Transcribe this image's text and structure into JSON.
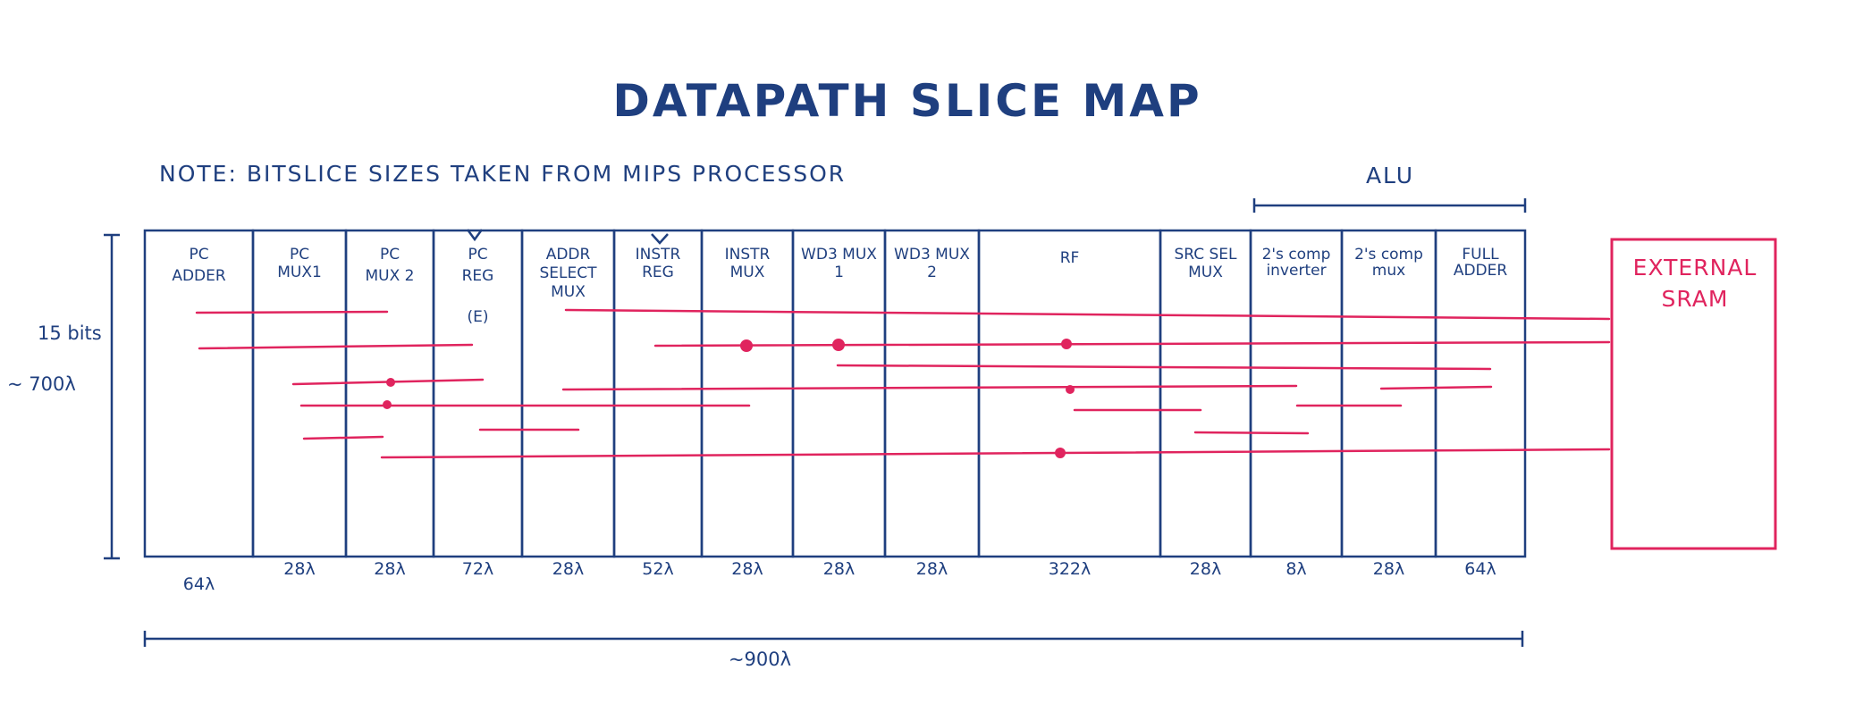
{
  "title": "DATAPATH SLICE MAP",
  "note": "NOTE: BITSLICE SIZES TAKEN FROM MIPS PROCESSOR",
  "alu_label": "ALU",
  "height_labels": {
    "bits": "15 bits",
    "lambda": "~ 700λ"
  },
  "total_width_label": "~900λ",
  "external_sram": [
    "EXTERNAL",
    "SRAM"
  ],
  "slices": [
    {
      "lines": [
        "PC",
        "ADDER"
      ],
      "width": "64λ"
    },
    {
      "lines": [
        "PC",
        "MUX1"
      ],
      "width": "28λ"
    },
    {
      "lines": [
        "PC",
        "MUX 2"
      ],
      "width": "28λ"
    },
    {
      "lines": [
        "PC",
        "REG",
        "(E)"
      ],
      "width": "72λ"
    },
    {
      "lines": [
        "ADDR",
        "SELECT",
        "MUX"
      ],
      "width": "28λ"
    },
    {
      "lines": [
        "INSTR",
        "REG"
      ],
      "width": "52λ"
    },
    {
      "lines": [
        "INSTR",
        "MUX"
      ],
      "width": "28λ"
    },
    {
      "lines": [
        "WD3 MUX",
        "1"
      ],
      "width": "28λ"
    },
    {
      "lines": [
        "WD3 MUX",
        "2"
      ],
      "width": "28λ"
    },
    {
      "lines": [
        "RF"
      ],
      "width": "322λ"
    },
    {
      "lines": [
        "SRC SEL",
        "MUX"
      ],
      "width": "28λ"
    },
    {
      "lines": [
        "2's comp",
        "inverter"
      ],
      "width": "8λ"
    },
    {
      "lines": [
        "2's comp",
        "mux"
      ],
      "width": "28λ"
    },
    {
      "lines": [
        "FULL",
        "ADDER"
      ],
      "width": "64λ"
    }
  ],
  "colors": {
    "ink": "#1f3f7f",
    "accent": "#e0245e",
    "background": "#ffffff"
  }
}
